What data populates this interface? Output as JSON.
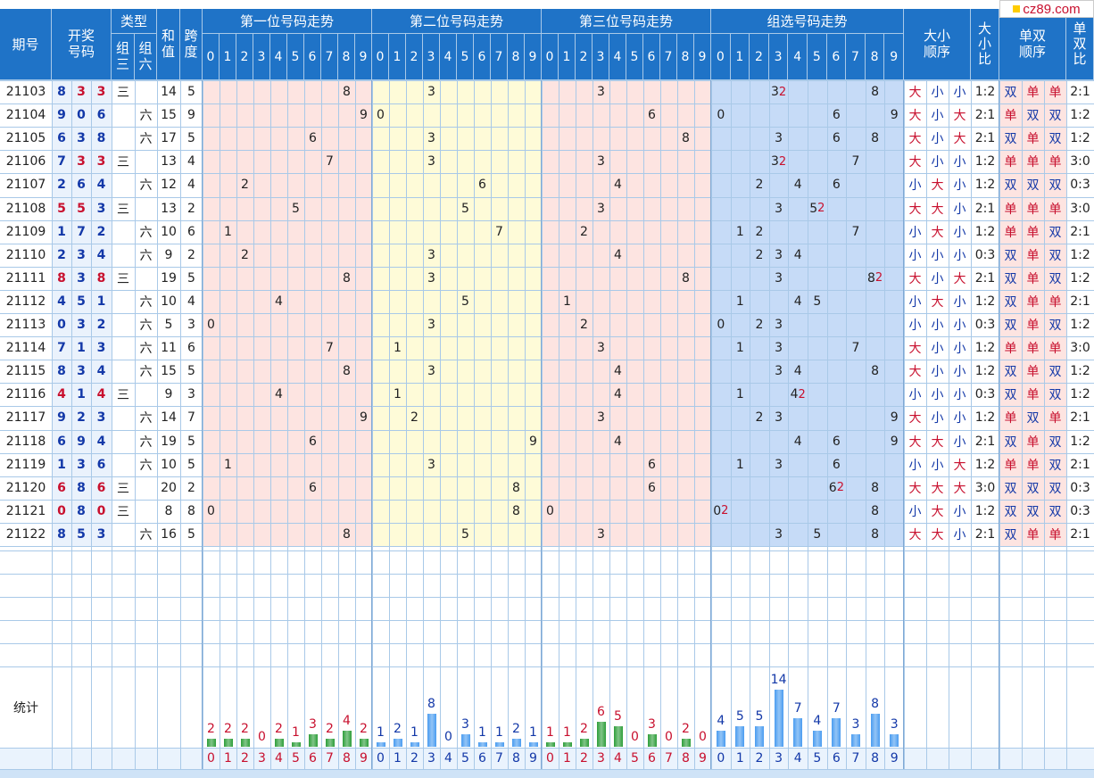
{
  "logo": "cz89.com",
  "headers": {
    "period": "期号",
    "draw": "开奖号码",
    "type": "类型",
    "type_z3": "组三",
    "type_z6": "组六",
    "sum": "和值",
    "span": "跨度",
    "pos1": "第一位号码走势",
    "pos2": "第二位号码走势",
    "pos3": "第三位号码走势",
    "group": "组选号码走势",
    "bigsmall_order": "大小顺序",
    "bigsmall_ratio": "大小比",
    "oddeven_order": "单双顺序",
    "oddeven_ratio": "单双比",
    "stats": "统计"
  },
  "digits": [
    "0",
    "1",
    "2",
    "3",
    "4",
    "5",
    "6",
    "7",
    "8",
    "9"
  ],
  "labels": {
    "z3": "三",
    "z6": "六",
    "big": "大",
    "small": "小",
    "odd": "单",
    "even": "双"
  },
  "chart_data": {
    "type": "table",
    "rows": [
      {
        "period": "21103",
        "draw": [
          8,
          3,
          3
        ],
        "type": "三",
        "sum": 14,
        "span": 5,
        "bs": [
          "大",
          "小",
          "小"
        ],
        "bs_ratio": "1:2",
        "oe": [
          "双",
          "单",
          "单"
        ],
        "oe_ratio": "2:1"
      },
      {
        "period": "21104",
        "draw": [
          9,
          0,
          6
        ],
        "type": "六",
        "sum": 15,
        "span": 9,
        "bs": [
          "大",
          "小",
          "大"
        ],
        "bs_ratio": "2:1",
        "oe": [
          "单",
          "双",
          "双"
        ],
        "oe_ratio": "1:2"
      },
      {
        "period": "21105",
        "draw": [
          6,
          3,
          8
        ],
        "type": "六",
        "sum": 17,
        "span": 5,
        "bs": [
          "大",
          "小",
          "大"
        ],
        "bs_ratio": "2:1",
        "oe": [
          "双",
          "单",
          "双"
        ],
        "oe_ratio": "1:2"
      },
      {
        "period": "21106",
        "draw": [
          7,
          3,
          3
        ],
        "type": "三",
        "sum": 13,
        "span": 4,
        "bs": [
          "大",
          "小",
          "小"
        ],
        "bs_ratio": "1:2",
        "oe": [
          "单",
          "单",
          "单"
        ],
        "oe_ratio": "3:0"
      },
      {
        "period": "21107",
        "draw": [
          2,
          6,
          4
        ],
        "type": "六",
        "sum": 12,
        "span": 4,
        "bs": [
          "小",
          "大",
          "小"
        ],
        "bs_ratio": "1:2",
        "oe": [
          "双",
          "双",
          "双"
        ],
        "oe_ratio": "0:3"
      },
      {
        "period": "21108",
        "draw": [
          5,
          5,
          3
        ],
        "type": "三",
        "sum": 13,
        "span": 2,
        "bs": [
          "大",
          "大",
          "小"
        ],
        "bs_ratio": "2:1",
        "oe": [
          "单",
          "单",
          "单"
        ],
        "oe_ratio": "3:0"
      },
      {
        "period": "21109",
        "draw": [
          1,
          7,
          2
        ],
        "type": "六",
        "sum": 10,
        "span": 6,
        "bs": [
          "小",
          "大",
          "小"
        ],
        "bs_ratio": "1:2",
        "oe": [
          "单",
          "单",
          "双"
        ],
        "oe_ratio": "2:1"
      },
      {
        "period": "21110",
        "draw": [
          2,
          3,
          4
        ],
        "type": "六",
        "sum": 9,
        "span": 2,
        "bs": [
          "小",
          "小",
          "小"
        ],
        "bs_ratio": "0:3",
        "oe": [
          "双",
          "单",
          "双"
        ],
        "oe_ratio": "1:2"
      },
      {
        "period": "21111",
        "draw": [
          8,
          3,
          8
        ],
        "type": "三",
        "sum": 19,
        "span": 5,
        "bs": [
          "大",
          "小",
          "大"
        ],
        "bs_ratio": "2:1",
        "oe": [
          "双",
          "单",
          "双"
        ],
        "oe_ratio": "1:2"
      },
      {
        "period": "21112",
        "draw": [
          4,
          5,
          1
        ],
        "type": "六",
        "sum": 10,
        "span": 4,
        "bs": [
          "小",
          "大",
          "小"
        ],
        "bs_ratio": "1:2",
        "oe": [
          "双",
          "单",
          "单"
        ],
        "oe_ratio": "2:1"
      },
      {
        "period": "21113",
        "draw": [
          0,
          3,
          2
        ],
        "type": "六",
        "sum": 5,
        "span": 3,
        "bs": [
          "小",
          "小",
          "小"
        ],
        "bs_ratio": "0:3",
        "oe": [
          "双",
          "单",
          "双"
        ],
        "oe_ratio": "1:2"
      },
      {
        "period": "21114",
        "draw": [
          7,
          1,
          3
        ],
        "type": "六",
        "sum": 11,
        "span": 6,
        "bs": [
          "大",
          "小",
          "小"
        ],
        "bs_ratio": "1:2",
        "oe": [
          "单",
          "单",
          "单"
        ],
        "oe_ratio": "3:0"
      },
      {
        "period": "21115",
        "draw": [
          8,
          3,
          4
        ],
        "type": "六",
        "sum": 15,
        "span": 5,
        "bs": [
          "大",
          "小",
          "小"
        ],
        "bs_ratio": "1:2",
        "oe": [
          "双",
          "单",
          "双"
        ],
        "oe_ratio": "1:2"
      },
      {
        "period": "21116",
        "draw": [
          4,
          1,
          4
        ],
        "type": "三",
        "sum": 9,
        "span": 3,
        "bs": [
          "小",
          "小",
          "小"
        ],
        "bs_ratio": "0:3",
        "oe": [
          "双",
          "单",
          "双"
        ],
        "oe_ratio": "1:2"
      },
      {
        "period": "21117",
        "draw": [
          9,
          2,
          3
        ],
        "type": "六",
        "sum": 14,
        "span": 7,
        "bs": [
          "大",
          "小",
          "小"
        ],
        "bs_ratio": "1:2",
        "oe": [
          "单",
          "双",
          "单"
        ],
        "oe_ratio": "2:1"
      },
      {
        "period": "21118",
        "draw": [
          6,
          9,
          4
        ],
        "type": "六",
        "sum": 19,
        "span": 5,
        "bs": [
          "大",
          "大",
          "小"
        ],
        "bs_ratio": "2:1",
        "oe": [
          "双",
          "单",
          "双"
        ],
        "oe_ratio": "1:2"
      },
      {
        "period": "21119",
        "draw": [
          1,
          3,
          6
        ],
        "type": "六",
        "sum": 10,
        "span": 5,
        "bs": [
          "小",
          "小",
          "大"
        ],
        "bs_ratio": "1:2",
        "oe": [
          "单",
          "单",
          "双"
        ],
        "oe_ratio": "2:1"
      },
      {
        "period": "21120",
        "draw": [
          6,
          8,
          6
        ],
        "type": "三",
        "sum": 20,
        "span": 2,
        "bs": [
          "大",
          "大",
          "大"
        ],
        "bs_ratio": "3:0",
        "oe": [
          "双",
          "双",
          "双"
        ],
        "oe_ratio": "0:3"
      },
      {
        "period": "21121",
        "draw": [
          0,
          8,
          0
        ],
        "type": "三",
        "sum": 8,
        "span": 8,
        "bs": [
          "小",
          "大",
          "小"
        ],
        "bs_ratio": "1:2",
        "oe": [
          "双",
          "双",
          "双"
        ],
        "oe_ratio": "0:3"
      },
      {
        "period": "21122",
        "draw": [
          8,
          5,
          3
        ],
        "type": "六",
        "sum": 16,
        "span": 5,
        "bs": [
          "大",
          "大",
          "小"
        ],
        "bs_ratio": "2:1",
        "oe": [
          "双",
          "单",
          "单"
        ],
        "oe_ratio": "2:1"
      }
    ],
    "stats": {
      "pos1": [
        2,
        2,
        2,
        0,
        2,
        1,
        3,
        2,
        4,
        2
      ],
      "pos2": [
        1,
        2,
        1,
        8,
        0,
        3,
        1,
        1,
        2,
        1
      ],
      "pos3": [
        1,
        1,
        2,
        6,
        5,
        0,
        3,
        0,
        2,
        0
      ],
      "group": [
        4,
        5,
        5,
        14,
        7,
        4,
        7,
        3,
        8,
        3
      ]
    },
    "colors": {
      "header": "#1f73c7",
      "pos_odd_bg": "#fde4e1",
      "pos_even_bg": "#fefbd8",
      "group_bg": "#c6dbf7",
      "stat_bar_pos1": "#2e9e3a",
      "stat_bar_pos2": "#4a9cf0",
      "stat_bar_pos3": "#2e9e3a",
      "stat_bar_group": "#4a9cf0",
      "repeat_digit": "#c8102e"
    }
  }
}
